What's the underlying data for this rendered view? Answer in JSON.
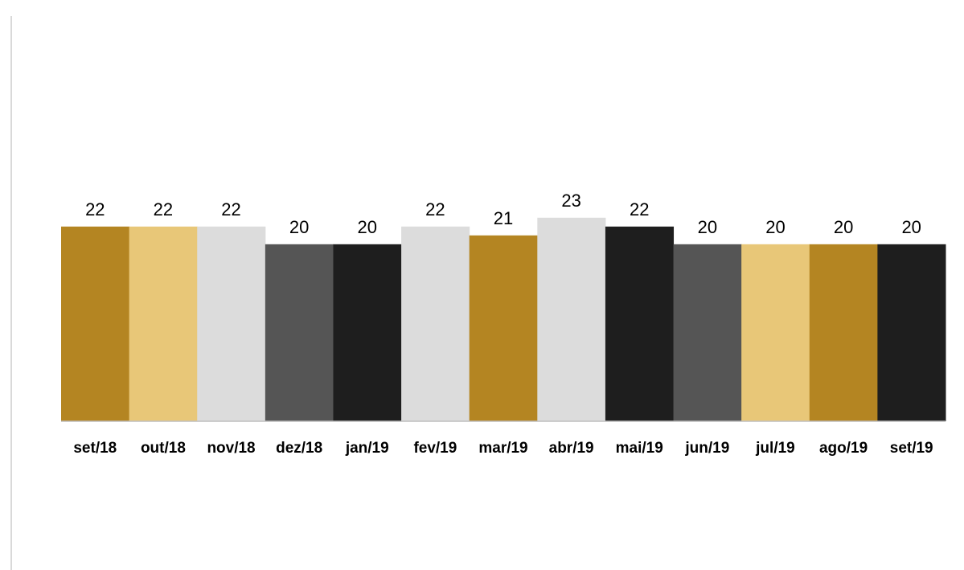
{
  "chart_data": {
    "type": "bar",
    "title": "",
    "xlabel": "",
    "ylabel": "",
    "categories": [
      "set/18",
      "out/18",
      "nov/18",
      "dez/18",
      "jan/19",
      "fev/19",
      "mar/19",
      "abr/19",
      "mai/19",
      "jun/19",
      "jul/19",
      "ago/19",
      "set/19"
    ],
    "values": [
      22,
      22,
      22,
      20,
      20,
      22,
      21,
      23,
      22,
      20,
      20,
      20,
      20
    ],
    "data_labels": [
      "22",
      "22",
      "22",
      "20",
      "20",
      "22",
      "21",
      "23",
      "22",
      "20",
      "20",
      "20",
      "20"
    ],
    "bar_colors": [
      "#b48522",
      "#e8c778",
      "#dcdcdc",
      "#555555",
      "#1e1e1e",
      "#dcdcdc",
      "#b48522",
      "#dcdcdc",
      "#1e1e1e",
      "#555555",
      "#e8c778",
      "#b48522",
      "#1e1e1e"
    ],
    "ylim": [
      0,
      43.6
    ],
    "grid": false,
    "legend": "none"
  }
}
